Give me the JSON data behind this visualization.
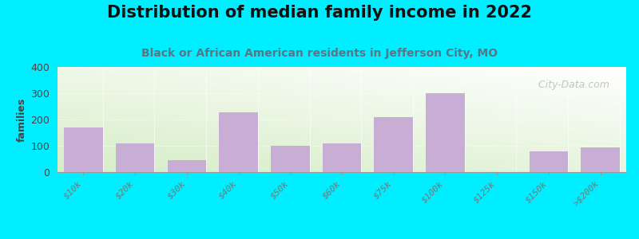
{
  "title": "Distribution of median family income in 2022",
  "subtitle": "Black or African American residents in Jefferson City, MO",
  "categories": [
    "$10k",
    "$20k",
    "$30k",
    "$40k",
    "$50k",
    "$60k",
    "$75k",
    "$100k",
    "$125k",
    "$150k",
    ">$200k"
  ],
  "values": [
    170,
    110,
    45,
    228,
    100,
    110,
    210,
    300,
    0,
    80,
    95
  ],
  "bar_color": "#c8aed4",
  "ylabel": "families",
  "ylim": [
    0,
    400
  ],
  "yticks": [
    0,
    100,
    200,
    300,
    400
  ],
  "bg_outer": "#00eeff",
  "bg_plot_topleft": "#d8ecc8",
  "bg_plot_bottomright": "#f8f8f8",
  "title_fontsize": 15,
  "subtitle_fontsize": 10,
  "subtitle_color": "#557788",
  "watermark": "  City-Data.com",
  "watermark_color": "#bbbbbb",
  "tick_color": "#777777",
  "spine_color": "#999999"
}
